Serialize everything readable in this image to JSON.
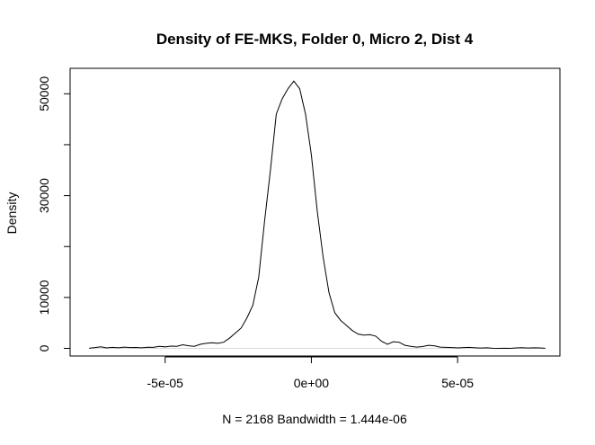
{
  "chart_data": {
    "type": "line",
    "title": "Density of FE-MKS, Folder 0, Micro 2, Dist 4",
    "xlabel": "N = 2168   Bandwidth = 1.444e-06",
    "ylabel": "Density",
    "xlim": [
      -8.25e-05,
      8.5e-05
    ],
    "ylim": [
      -1500,
      55000
    ],
    "x_ticks": [
      {
        "value": -5e-05,
        "label": "-5e-05"
      },
      {
        "value": 0,
        "label": "0e+00"
      },
      {
        "value": 5e-05,
        "label": "5e-05"
      }
    ],
    "y_ticks": [
      {
        "value": 0,
        "label": "0"
      },
      {
        "value": 10000,
        "label": "10000"
      },
      {
        "value": 30000,
        "label": "30000"
      },
      {
        "value": 50000,
        "label": "50000"
      }
    ],
    "minor_y_ticks": [
      20000,
      40000
    ],
    "baseline": 0,
    "grid": false,
    "line_color": "#000000",
    "baseline_color": "#d9d9d9",
    "series": [
      {
        "x": [
          -7.6e-05,
          -7.4e-05,
          -7.2e-05,
          -7e-05,
          -6.8e-05,
          -6.6e-05,
          -6.4e-05,
          -6.2e-05,
          -6e-05,
          -5.8e-05,
          -5.6e-05,
          -5.4e-05,
          -5.2e-05,
          -5e-05,
          -4.8e-05,
          -4.6e-05,
          -4.4e-05,
          -4.2e-05,
          -4e-05,
          -3.8e-05,
          -3.6e-05,
          -3.4e-05,
          -3.2e-05,
          -3e-05,
          -2.8e-05,
          -2.6e-05,
          -2.4e-05,
          -2.2e-05,
          -2e-05,
          -1.8e-05,
          -1.6e-05,
          -1.4e-05,
          -1.2e-05,
          -1e-05,
          -8e-06,
          -6e-06,
          -4e-06,
          -2e-06,
          0,
          2e-06,
          4e-06,
          6e-06,
          8e-06,
          1e-05,
          1.2e-05,
          1.4e-05,
          1.6e-05,
          1.8e-05,
          2e-05,
          2.2e-05,
          2.4e-05,
          2.6e-05,
          2.8e-05,
          3e-05,
          3.2e-05,
          3.4e-05,
          3.6e-05,
          3.8e-05,
          4e-05,
          4.2e-05,
          4.4e-05,
          4.6e-05,
          4.8e-05,
          5e-05,
          5.2e-05,
          5.4e-05,
          5.6e-05,
          5.8e-05,
          6e-05,
          6.2e-05,
          6.4e-05,
          6.6e-05,
          6.8e-05,
          7e-05,
          7.2e-05,
          7.4e-05,
          7.6e-05,
          7.8e-05,
          8e-05
        ],
        "values": [
          30,
          150,
          300,
          80,
          200,
          120,
          250,
          150,
          180,
          120,
          220,
          200,
          400,
          300,
          450,
          400,
          700,
          500,
          400,
          800,
          1000,
          1100,
          1000,
          1200,
          2000,
          3000,
          4000,
          6000,
          8500,
          14000,
          25000,
          35000,
          46000,
          49000,
          51000,
          52500,
          51000,
          46000,
          38000,
          27000,
          18000,
          11000,
          7000,
          5500,
          4500,
          3500,
          2800,
          2600,
          2700,
          2400,
          1400,
          800,
          1300,
          1200,
          600,
          400,
          250,
          350,
          600,
          500,
          250,
          200,
          150,
          100,
          150,
          200,
          120,
          60,
          120,
          30,
          0,
          20,
          0,
          100,
          130,
          60,
          120,
          80,
          30
        ]
      }
    ]
  }
}
